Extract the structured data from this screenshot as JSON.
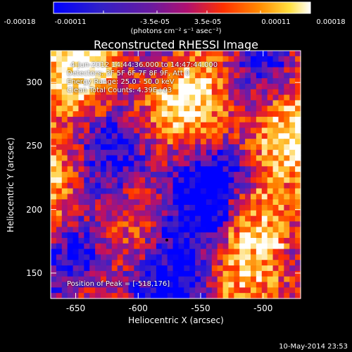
{
  "colorbar": {
    "tick_labels": [
      "-0.00018",
      "-0.00011",
      "-3.5e-05",
      "3.5e-05",
      "0.00011",
      "0.00018"
    ],
    "units": "(photons cm⁻² s⁻¹ asec⁻²)",
    "colors": [
      "#0000ff",
      "#4020c0",
      "#7a1aa0",
      "#c01060",
      "#ff3000",
      "#ff8000",
      "#ffd040",
      "#ffffff"
    ]
  },
  "chart_data": {
    "type": "heatmap",
    "title": "Reconstructed RHESSI Image",
    "xlabel": "Heliocentric X (arcsec)",
    "ylabel": "Heliocentric Y (arcsec)",
    "xlim": [
      -670,
      -470
    ],
    "ylim": [
      130,
      325
    ],
    "x_ticks": [
      "-650",
      "-600",
      "-550",
      "-500"
    ],
    "y_ticks": [
      "150",
      "200",
      "250",
      "300"
    ],
    "x_tick_values": [
      -650,
      -600,
      -550,
      -500
    ],
    "y_tick_values": [
      150,
      200,
      250,
      300
    ],
    "color_range": [
      -0.00018,
      0.00018
    ],
    "peak": [
      -518,
      176
    ],
    "annotations": [
      "4-Jun-2012 14:44:36.000 to 14:47:44.000",
      "Detectors: 3F 5F 6F 7F 8F 9F, Att 0",
      "Energy Range: 25.0 - 50.0 keV",
      "Clean     Total Counts: 4.39E+03",
      "Position of Peak = [-518,176]"
    ]
  },
  "footer": {
    "timestamp": "10-May-2014 23:53"
  }
}
